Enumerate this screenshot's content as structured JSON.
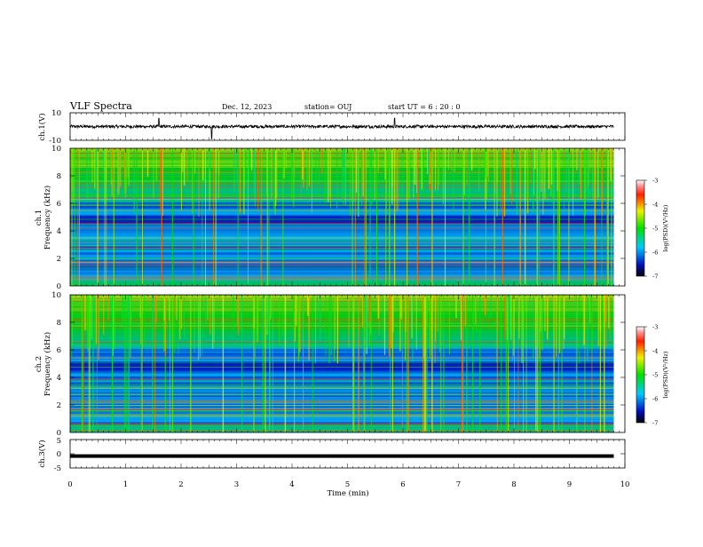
{
  "header": {
    "title": "VLF Spectra",
    "date": "Dec. 12, 2023",
    "station": "station= OUJ",
    "start_ut": "start  UT =   6  : 20 : 0"
  },
  "colors": {
    "spectrogram_background": "#0a1aa0",
    "waveform": "#000000"
  },
  "chart_data": [
    {
      "type": "line",
      "id": "ch1-waveform",
      "ylabel": "ch.1(V)",
      "xlabel": "",
      "xlim": [
        0,
        10
      ],
      "ylim": [
        -10,
        10
      ],
      "y_ticks": [
        "10",
        "-10"
      ],
      "signal": "noise around 0 V, amplitude ~1 V, occasional spikes",
      "spikes_min": [
        1.6,
        2.55,
        5.85
      ]
    },
    {
      "type": "heatmap",
      "id": "ch1-spectrogram",
      "ylabel": "ch.1\nFrequency (kHz)",
      "xlim": [
        0,
        10
      ],
      "data_xmax": 9.8,
      "ylim": [
        0,
        10
      ],
      "y_ticks": [
        "0",
        "2",
        "4",
        "6",
        "8",
        "10"
      ],
      "colorbar": {
        "label": "log(PSD)(V²/Hz)",
        "range": [
          -7,
          -3
        ],
        "ticks": [
          "-3",
          "-4",
          "-5",
          "-6",
          "-7"
        ]
      }
    },
    {
      "type": "heatmap",
      "id": "ch2-spectrogram",
      "ylabel": "ch.2\nFrequency (kHz)",
      "xlim": [
        0,
        10
      ],
      "data_xmax": 9.8,
      "ylim": [
        0,
        10
      ],
      "y_ticks": [
        "0",
        "2",
        "4",
        "6",
        "8",
        "10"
      ],
      "colorbar": {
        "label": "log(PSD)(V²/Hz)",
        "range": [
          -7,
          -3
        ],
        "ticks": [
          "-3",
          "-4",
          "-5",
          "-6",
          "-7"
        ]
      }
    },
    {
      "type": "line",
      "id": "ch3-waveform",
      "ylabel": "ch.3(V)",
      "xlabel": "Time (min)",
      "xlim": [
        0,
        10
      ],
      "ylim": [
        -5,
        5
      ],
      "y_ticks": [
        "5",
        "0",
        "-5"
      ],
      "x_ticks": [
        "0",
        "1",
        "2",
        "3",
        "4",
        "5",
        "6",
        "7",
        "8",
        "9",
        "10"
      ],
      "signal": "constant thick band near -0.8 V"
    }
  ]
}
